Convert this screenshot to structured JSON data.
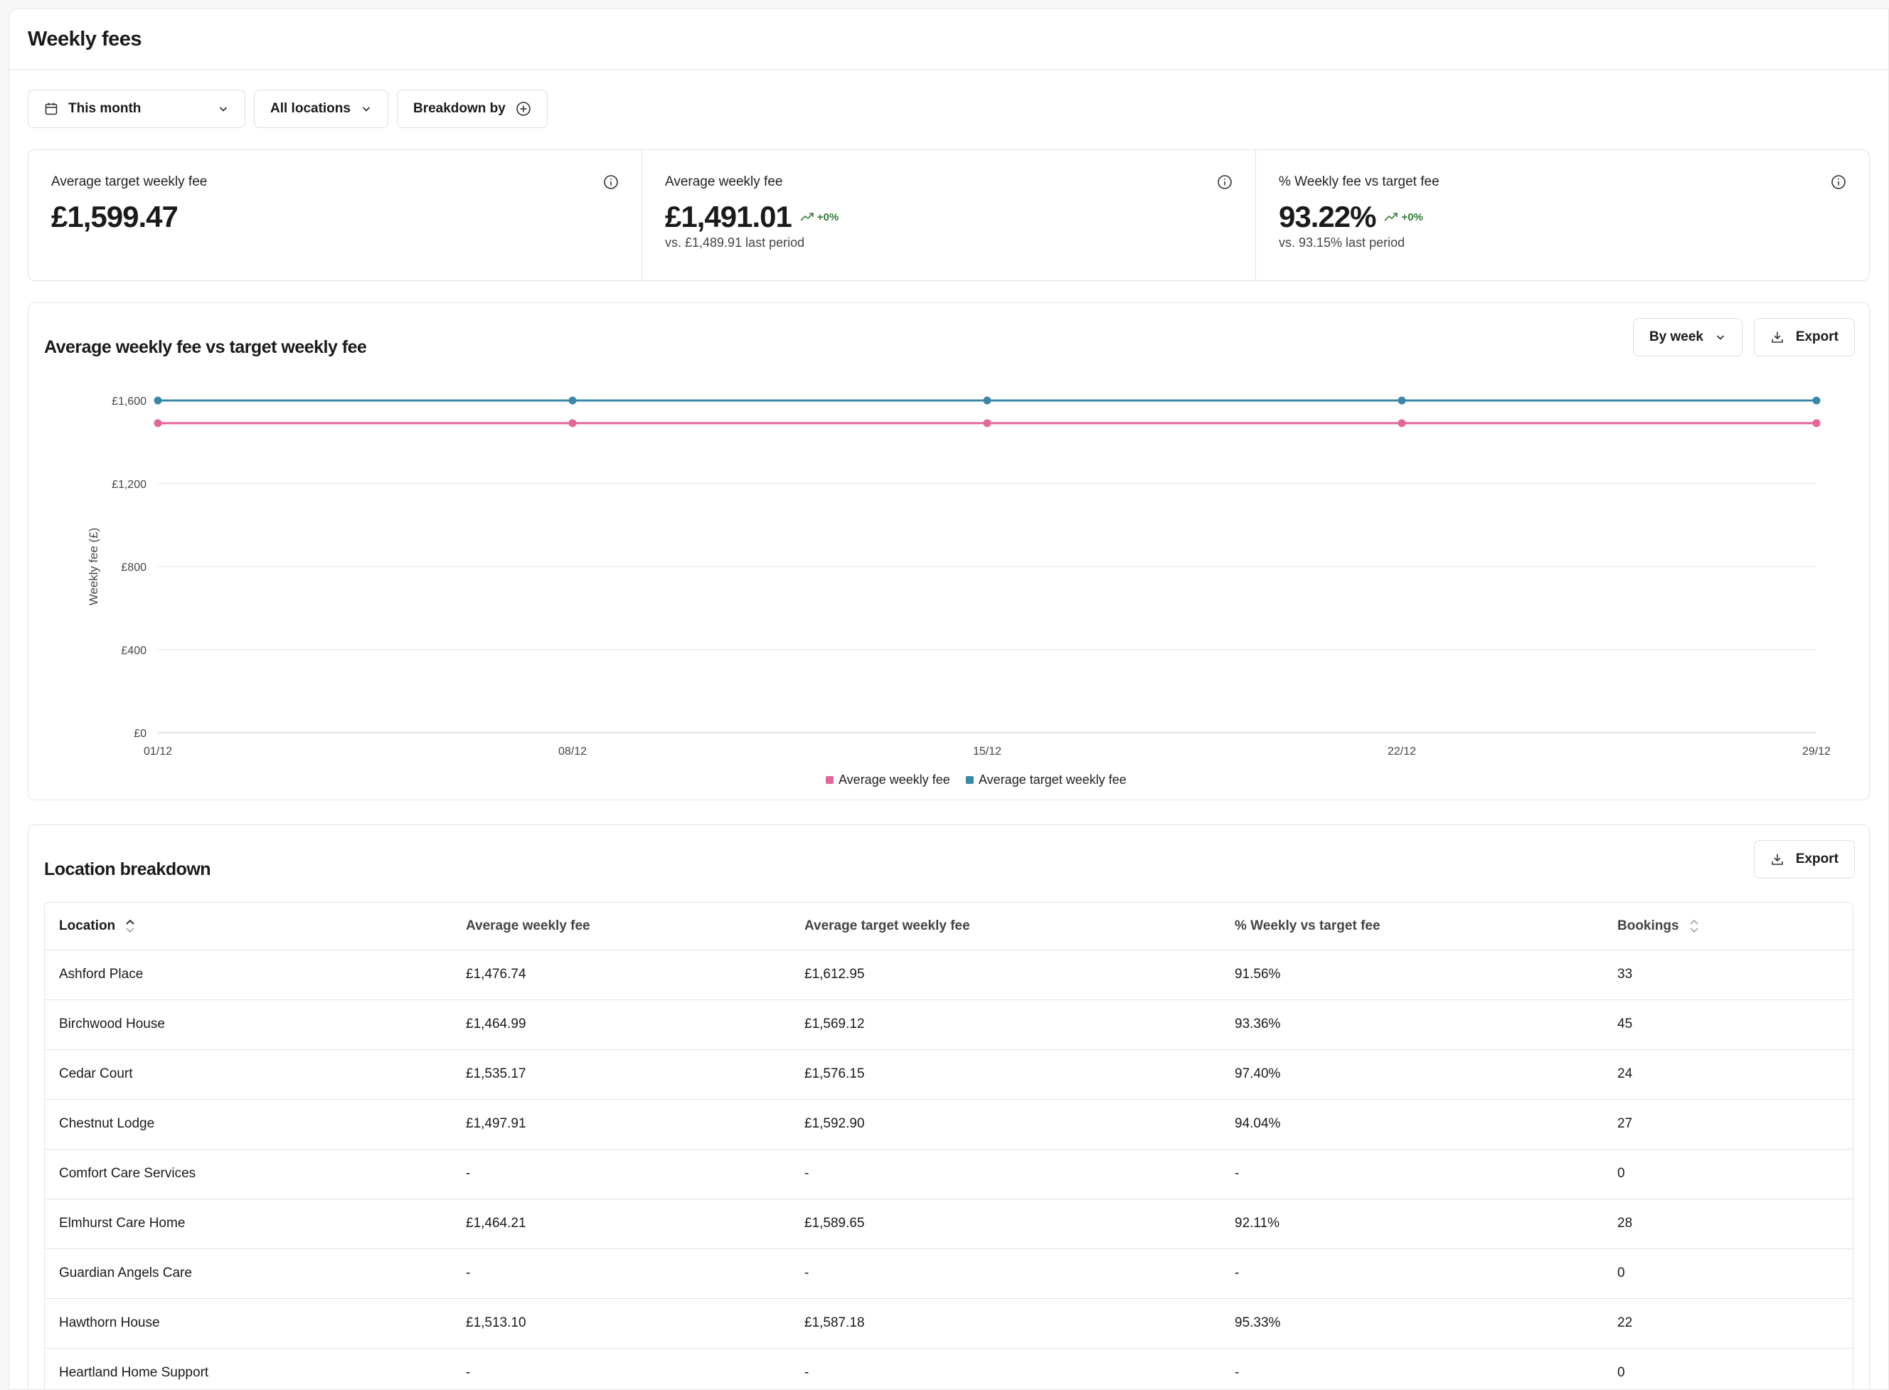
{
  "page": {
    "title": "Weekly fees"
  },
  "filters": {
    "date_label": "This month",
    "location_label": "All locations",
    "breakdown_label": "Breakdown by"
  },
  "kpis": [
    {
      "label": "Average target weekly fee",
      "value": "£1,599.47",
      "change": "",
      "sub": ""
    },
    {
      "label": "Average weekly fee",
      "value": "£1,491.01",
      "change": "+0%",
      "sub": "vs. £1,489.91 last period"
    },
    {
      "label": "% Weekly fee vs target fee",
      "value": "93.22%",
      "change": "+0%",
      "sub": "vs. 93.15% last period"
    }
  ],
  "chart_panel": {
    "title": "Average weekly fee vs target weekly fee",
    "period_label": "By week",
    "export_label": "Export"
  },
  "chart_data": {
    "type": "line",
    "title": "Average weekly fee vs target weekly fee",
    "xlabel": "",
    "ylabel": "Weekly fee (£)",
    "categories": [
      "01/12",
      "08/12",
      "15/12",
      "22/12",
      "29/12"
    ],
    "yticks": [
      "£0",
      "£400",
      "£800",
      "£1,200",
      "£1,600"
    ],
    "ylim": [
      0,
      1600
    ],
    "grid": true,
    "legend_position": "bottom-center",
    "series": [
      {
        "name": "Average weekly fee",
        "color": "#e4669a",
        "values": [
          1491,
          1491,
          1491,
          1491,
          1491
        ]
      },
      {
        "name": "Average target weekly fee",
        "color": "#3a88a8",
        "values": [
          1600,
          1600,
          1600,
          1600,
          1600
        ]
      }
    ]
  },
  "table_panel": {
    "title": "Location breakdown",
    "export_label": "Export",
    "columns": [
      "Location",
      "Average weekly fee",
      "Average target weekly fee",
      "% Weekly vs target fee",
      "Bookings"
    ],
    "rows": [
      [
        "Ashford Place",
        "£1,476.74",
        "£1,612.95",
        "91.56%",
        "33"
      ],
      [
        "Birchwood House",
        "£1,464.99",
        "£1,569.12",
        "93.36%",
        "45"
      ],
      [
        "Cedar Court",
        "£1,535.17",
        "£1,576.15",
        "97.40%",
        "24"
      ],
      [
        "Chestnut Lodge",
        "£1,497.91",
        "£1,592.90",
        "94.04%",
        "27"
      ],
      [
        "Comfort Care Services",
        "-",
        "-",
        "-",
        "0"
      ],
      [
        "Elmhurst Care Home",
        "£1,464.21",
        "£1,589.65",
        "92.11%",
        "28"
      ],
      [
        "Guardian Angels Care",
        "-",
        "-",
        "-",
        "0"
      ],
      [
        "Hawthorn House",
        "£1,513.10",
        "£1,587.18",
        "95.33%",
        "22"
      ],
      [
        "Heartland Home Support",
        "-",
        "-",
        "-",
        "0"
      ]
    ]
  },
  "icons": {
    "calendar": "calendar-icon",
    "chevron": "chevron-down-icon",
    "add": "plus-circle-icon",
    "info": "info-icon",
    "trend": "trend-up-icon",
    "download": "download-icon",
    "sort": "sort-icon"
  },
  "colors": {
    "positive": "#2e7d32",
    "pink": "#e4669a",
    "teal": "#3a88a8"
  }
}
